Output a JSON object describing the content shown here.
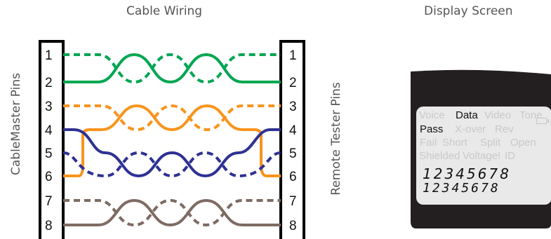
{
  "titles": {
    "cable_wiring": "Cable Wiring",
    "display_screen": "Display Screen"
  },
  "side_labels": {
    "left": "CableMaster Pins",
    "right": "Remote Tester Pins"
  },
  "pins": [
    "1",
    "2",
    "3",
    "4",
    "5",
    "6",
    "7",
    "8"
  ],
  "wire_colors": {
    "green": "#00a651",
    "orange": "#f7941d",
    "blue": "#2e3192",
    "brown": "#7d6b63"
  },
  "display": {
    "row1": [
      {
        "text": "Voice",
        "on": false
      },
      {
        "text": "Data",
        "on": true
      },
      {
        "text": "Video",
        "on": false
      },
      {
        "text": "Tone",
        "on": false
      }
    ],
    "row2": [
      {
        "text": "Pass",
        "on": true
      },
      {
        "text": "X-over",
        "on": false
      },
      {
        "text": "Rev",
        "on": false
      }
    ],
    "row3": [
      {
        "text": "Fail",
        "on": false
      },
      {
        "text": "Short",
        "on": false
      },
      {
        "text": "Split",
        "on": false
      },
      {
        "text": "Open",
        "on": false
      }
    ],
    "row4": [
      {
        "text": "Shielded",
        "on": false
      },
      {
        "text": "Voltage!",
        "on": false
      },
      {
        "text": "ID",
        "on": false
      }
    ],
    "numbers_top": "12345678",
    "numbers_bottom": "12345678"
  }
}
